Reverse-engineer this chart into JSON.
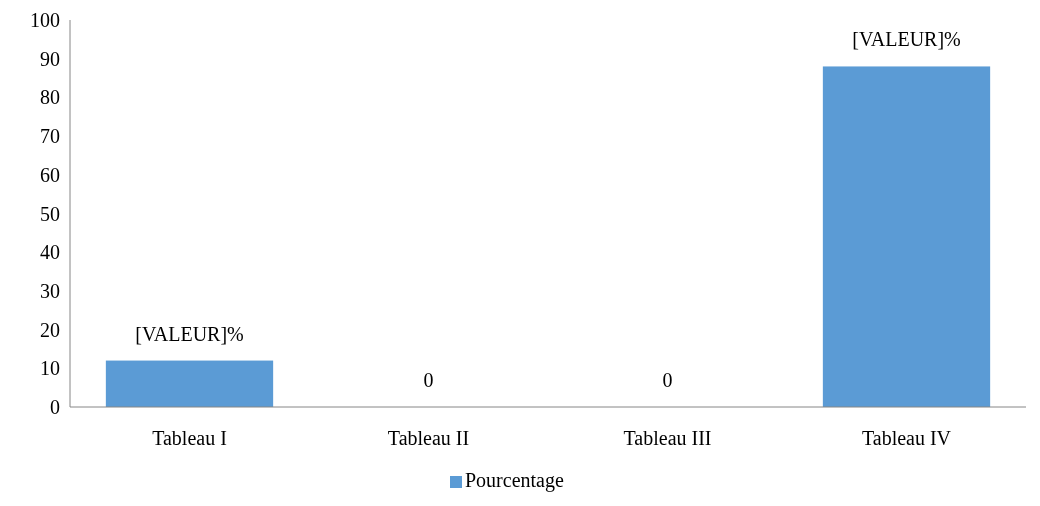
{
  "chart_data": {
    "type": "bar",
    "categories": [
      "Tableau I",
      "Tableau II",
      "Tableau III",
      "Tableau IV"
    ],
    "series": [
      {
        "name": "Pourcentage",
        "color": "#5b9bd5",
        "values": [
          12,
          0,
          0,
          88
        ],
        "value_labels": [
          "[VALEUR]%",
          "0",
          "0",
          "[VALEUR]%"
        ]
      }
    ],
    "ylim": [
      0,
      100
    ],
    "yticks": [
      0,
      10,
      20,
      30,
      40,
      50,
      60,
      70,
      80,
      90,
      100
    ],
    "legend": "bottom"
  }
}
